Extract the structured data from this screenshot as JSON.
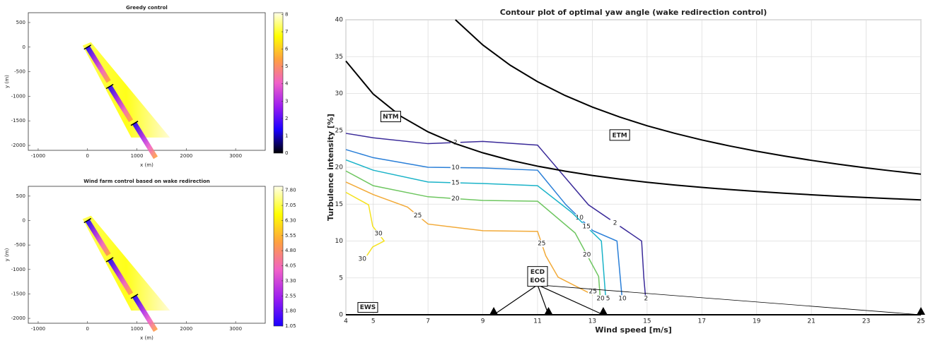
{
  "chart_data": [
    {
      "type": "heatmap",
      "title": "Greedy control",
      "xlabel": "x (m)",
      "ylabel": "y (m)",
      "xlim": [
        -1200,
        3600
      ],
      "ylim": [
        -2100,
        700
      ],
      "xticks": [
        -1000,
        0,
        1000,
        2000,
        3000
      ],
      "yticks": [
        500,
        0,
        -500,
        -1000,
        -1500,
        -2000
      ],
      "turbines": {
        "x": [
          0,
          450,
          950
        ],
        "y": [
          0,
          -800,
          -1550
        ]
      },
      "colormap": [
        "#000000",
        "#1a00ff",
        "#9b1df0",
        "#f060c8",
        "#ffa040",
        "#ffff00",
        "#ffffe8"
      ],
      "clim": [
        0,
        8.1
      ],
      "cticks": [
        0,
        1,
        2,
        3,
        4,
        5,
        6,
        7,
        8
      ]
    },
    {
      "type": "heatmap",
      "title": "Wind farm control based on wake redirection",
      "xlabel": "x (m)",
      "ylabel": "y (m)",
      "xlim": [
        -1200,
        3600
      ],
      "ylim": [
        -2100,
        700
      ],
      "xticks": [
        -1000,
        0,
        1000,
        2000,
        3000
      ],
      "yticks": [
        500,
        0,
        -500,
        -1000,
        -1500,
        -2000
      ],
      "turbines": {
        "x": [
          0,
          450,
          950
        ],
        "y": [
          0,
          -800,
          -1550
        ]
      },
      "colormap": [
        "#1a00ff",
        "#9b1df0",
        "#f060c8",
        "#ffa040",
        "#ffff00",
        "#ffffe8"
      ],
      "clim": [
        1.05,
        8.0
      ],
      "cticks": [
        1.05,
        {
          "value": 1.8,
          "label": "1.80"
        },
        2.55,
        {
          "value": 3.3,
          "label": "3.30"
        },
        4.05,
        {
          "value": 4.8,
          "label": "4.80"
        },
        5.55,
        {
          "value": 6.3,
          "label": "6.30"
        },
        7.05,
        {
          "value": 7.8,
          "label": "7.80"
        }
      ]
    },
    {
      "type": "contour",
      "title": "Contour plot of optimal yaw angle (wake redirection control)",
      "xlabel": "Wind speed [m/s]",
      "ylabel": "Turbulence intensity [%]",
      "xlim": [
        4,
        25
      ],
      "ylim": [
        0,
        40
      ],
      "grid": true,
      "xticks": [
        4,
        5,
        7,
        9,
        11,
        13,
        15,
        17,
        19,
        21,
        23,
        25
      ],
      "yticks": [
        0,
        5,
        10,
        15,
        20,
        25,
        30,
        35,
        40
      ],
      "series": [
        {
          "name": "2",
          "color": "#3a2a99",
          "x": [
            4,
            5,
            7,
            9,
            11,
            12.86,
            14.8,
            14.88,
            14.96
          ],
          "values": [
            24.6,
            24,
            23.2,
            23.5,
            23,
            14.9,
            10,
            5.07,
            1.7
          ]
        },
        {
          "name": "10",
          "color": "#2a7fd8",
          "x": [
            4,
            5,
            7,
            9,
            11,
            12.04,
            13.02,
            13.9,
            14.1
          ],
          "values": [
            22.4,
            21.3,
            20,
            19.9,
            19.6,
            14.9,
            11.4,
            10,
            1.7
          ]
        },
        {
          "name": "15",
          "color": "#1ab3c8",
          "x": [
            4,
            5,
            7,
            9,
            11,
            12.24,
            13.33,
            13.5
          ],
          "values": [
            21,
            19.6,
            18,
            17.8,
            17.5,
            13.9,
            10,
            1.7
          ]
        },
        {
          "name": "20",
          "color": "#6ec660",
          "x": [
            4,
            5,
            7,
            9,
            11,
            12.37,
            13.23,
            13.3
          ],
          "values": [
            19.5,
            17.5,
            16,
            15.5,
            15.4,
            11.1,
            5.2,
            1.7
          ]
        },
        {
          "name": "25",
          "color": "#f2aa38",
          "x": [
            4,
            5,
            6.25,
            7,
            9,
            11,
            11.3,
            11.75,
            13.02
          ],
          "values": [
            18,
            16.3,
            14.6,
            12.3,
            11.4,
            11.3,
            8,
            5.1,
            2.7
          ]
        },
        {
          "name": "30",
          "color": "#f5e21e",
          "x": [
            4,
            4.83,
            4.98,
            5.4,
            4.98,
            4.6
          ],
          "values": [
            16.6,
            14.9,
            12,
            10,
            9.2,
            7.1
          ]
        },
        {
          "name": "NTM",
          "color": "#000000",
          "x": [
            4,
            5,
            6,
            7,
            8,
            9,
            10,
            11,
            12,
            13,
            14,
            15,
            16,
            17,
            18,
            19,
            20,
            21,
            22,
            23,
            24,
            25
          ],
          "values": [
            34.4,
            29.92,
            26.93,
            24.8,
            23.2,
            21.96,
            20.96,
            20.15,
            19.47,
            18.89,
            18.4,
            17.97,
            17.6,
            17.27,
            16.98,
            16.72,
            16.48,
            16.27,
            16.07,
            15.9,
            15.73,
            15.58
          ]
        },
        {
          "name": "ETM",
          "color": "#000000",
          "x": [
            8,
            9,
            10,
            11,
            12,
            13,
            14,
            15,
            16,
            17,
            18,
            19,
            20,
            21,
            22,
            23,
            24,
            25
          ],
          "values": [
            40,
            36.58,
            33.84,
            31.6,
            29.74,
            28.16,
            26.81,
            25.63,
            24.61,
            23.7,
            22.9,
            22.18,
            21.53,
            20.94,
            20.41,
            19.92,
            19.48,
            19.07
          ]
        }
      ],
      "markers": {
        "x": [
          9.4,
          11.4,
          13.4,
          25
        ],
        "values": [
          0,
          0,
          0,
          0
        ]
      },
      "annotations": [
        "EWS",
        "ECD",
        "EOG"
      ]
    }
  ]
}
